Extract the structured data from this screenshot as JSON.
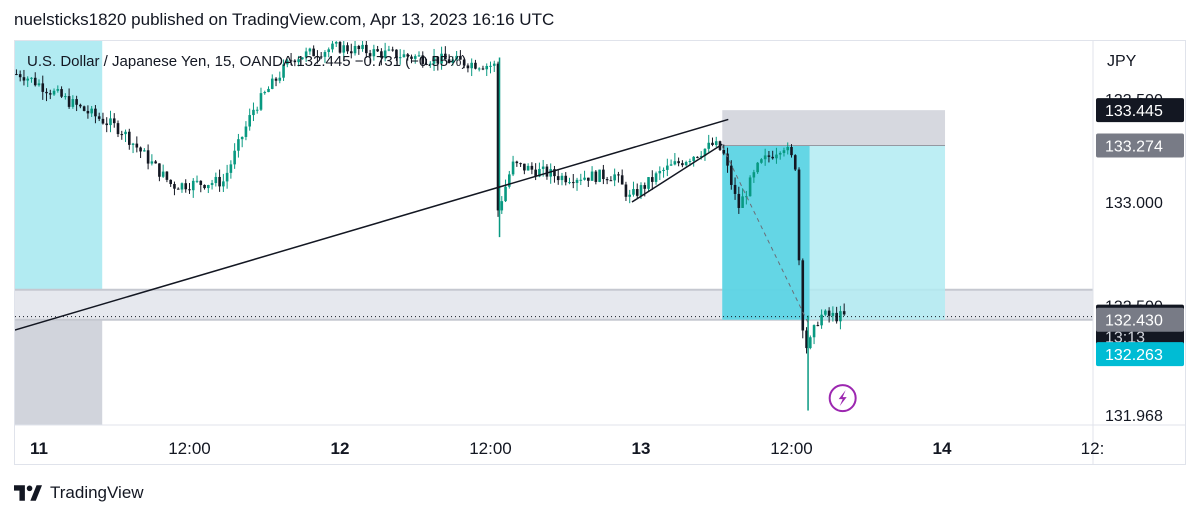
{
  "header": {
    "published_line": "nuelsticks1820 published on TradingView.com, Apr 13, 2023 16:16 UTC"
  },
  "legend": {
    "symbol_line": "U.S. Dollar / Japanese Yen, 15, OANDA  132.445  −0.731 (−0.55%)"
  },
  "footer": {
    "brand": "TradingView"
  },
  "colors": {
    "up": "#089981",
    "down": "#131722",
    "session": "#b2ebf2",
    "target_zone": "#b2ebf2",
    "target_zone_dark": "#4dd0e1",
    "stop_zone": "#d1d4dc",
    "sr_band": "#e6e8ee",
    "accent_badge": "#00bcd4",
    "flash_icon": "#9c27b0"
  },
  "chart_data": {
    "type": "candlestick",
    "symbol": "U.S. Dollar / Japanese Yen",
    "interval": "15",
    "exchange": "OANDA",
    "last": 132.445,
    "change": -0.731,
    "change_pct": -0.55,
    "currency": "JPY",
    "ylim": [
      131.92,
      133.78
    ],
    "x_ticks": [
      {
        "label": "11",
        "t": 0.0,
        "bold": true
      },
      {
        "label": "12:00",
        "t": 0.5,
        "bold": false
      },
      {
        "label": "12",
        "t": 1.0,
        "bold": true
      },
      {
        "label": "12:00",
        "t": 1.5,
        "bold": false
      },
      {
        "label": "13",
        "t": 2.0,
        "bold": true
      },
      {
        "label": "12:00",
        "t": 2.5,
        "bold": false
      },
      {
        "label": "14",
        "t": 3.0,
        "bold": true
      },
      {
        "label": "12:",
        "t": 3.5,
        "bold": false
      }
    ],
    "y_ticks": [
      "133.500",
      "133.000",
      "132.500",
      "131.968"
    ],
    "price_badges": [
      {
        "value": "133.445",
        "price": 133.445,
        "kind": "dark"
      },
      {
        "value": "133.274",
        "price": 133.274,
        "kind": "gray"
      },
      {
        "value": "132.445",
        "price": 132.445,
        "kind": "dark",
        "sub": "13:13"
      },
      {
        "value": "132.430",
        "price": 132.43,
        "kind": "gray"
      },
      {
        "value": "132.263",
        "price": 132.263,
        "kind": "cyan"
      }
    ],
    "key_points": [
      {
        "t": -0.05,
        "price": 133.62
      },
      {
        "t": 0.15,
        "price": 133.45
      },
      {
        "t": 0.28,
        "price": 133.35
      },
      {
        "t": 0.45,
        "price": 133.08
      },
      {
        "t": 0.62,
        "price": 133.1
      },
      {
        "t": 0.72,
        "price": 133.45
      },
      {
        "t": 0.85,
        "price": 133.7
      },
      {
        "t": 1.0,
        "price": 133.75
      },
      {
        "t": 1.15,
        "price": 133.72
      },
      {
        "t": 1.4,
        "price": 133.68
      },
      {
        "t": 1.52,
        "price": 133.66
      },
      {
        "t": 1.53,
        "price": 132.95
      },
      {
        "t": 1.58,
        "price": 133.18
      },
      {
        "t": 1.75,
        "price": 133.12
      },
      {
        "t": 1.92,
        "price": 133.13
      },
      {
        "t": 1.97,
        "price": 133.02
      },
      {
        "t": 2.08,
        "price": 133.15
      },
      {
        "t": 2.25,
        "price": 133.28
      },
      {
        "t": 2.28,
        "price": 133.24
      },
      {
        "t": 2.33,
        "price": 132.97
      },
      {
        "t": 2.4,
        "price": 133.18
      },
      {
        "t": 2.48,
        "price": 133.28
      },
      {
        "t": 2.52,
        "price": 133.18
      },
      {
        "t": 2.54,
        "price": 132.45
      },
      {
        "t": 2.56,
        "price": 132.28
      },
      {
        "t": 2.6,
        "price": 132.45
      },
      {
        "t": 2.68,
        "price": 132.445
      }
    ],
    "wicks": [
      {
        "t": 1.53,
        "high": 133.7,
        "low": 132.83
      },
      {
        "t": 2.555,
        "high": 132.45,
        "low": 131.99
      }
    ],
    "trendlines": [
      {
        "t1": -0.08,
        "p1": 132.38,
        "t2": 2.29,
        "p2": 133.4
      },
      {
        "t1": 1.97,
        "p1": 133.0,
        "t2": 2.27,
        "p2": 133.28
      }
    ],
    "dashed_line": {
      "t1": 2.27,
      "p1": 133.27,
      "t2": 2.56,
      "p2": 132.4
    },
    "sessions": [
      {
        "t1": -0.08,
        "t2": 0.21
      }
    ],
    "position": {
      "t1": 2.27,
      "t2": 3.01,
      "entry": 133.274,
      "stop": 133.445,
      "target": 132.43,
      "filled_until": 2.56
    },
    "sr_band": {
      "top": 132.43,
      "bottom": 132.263
    },
    "session_tail": {
      "t1": -0.08,
      "t2": 0.21,
      "top": 132.43,
      "bottom": 131.92
    },
    "flash_marker": {
      "t": 2.67,
      "price": 132.05
    }
  }
}
